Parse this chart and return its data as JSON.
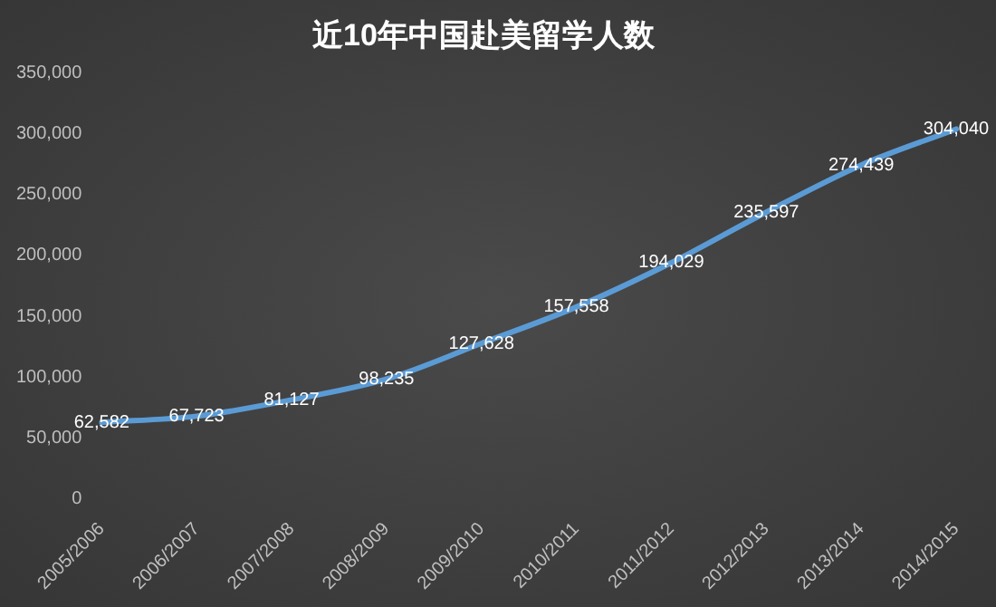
{
  "chart_data": {
    "type": "line",
    "title": "近10年中国赴美留学人数",
    "categories": [
      "2005/2006",
      "2006/2007",
      "2007/2008",
      "2008/2009",
      "2009/2010",
      "2010/2011",
      "2011/2012",
      "2012/2013",
      "2013/2014",
      "2014/2015"
    ],
    "series": [
      {
        "color": "#5b9bd5",
        "values": [
          62582,
          67723,
          81127,
          98235,
          127628,
          157558,
          194029,
          235597,
          274439,
          304040
        ],
        "value_labels": [
          "62,582",
          "67,723",
          "81,127",
          "98,235",
          "127,628",
          "157,558",
          "194,029",
          "235,597",
          "274,439",
          "304,040"
        ]
      }
    ],
    "ylim": [
      0,
      350000
    ],
    "yticks": [
      {
        "value": 0,
        "label": "0"
      },
      {
        "value": 50000,
        "label": "50,000"
      },
      {
        "value": 100000,
        "label": "100,000"
      },
      {
        "value": 150000,
        "label": "150,000"
      },
      {
        "value": 200000,
        "label": "200,000"
      },
      {
        "value": 250000,
        "label": "250,000"
      },
      {
        "value": 300000,
        "label": "300,000"
      },
      {
        "value": 350000,
        "label": "350,000"
      }
    ],
    "grid": false,
    "legend": false,
    "marker": "none",
    "line_style": "solid"
  }
}
